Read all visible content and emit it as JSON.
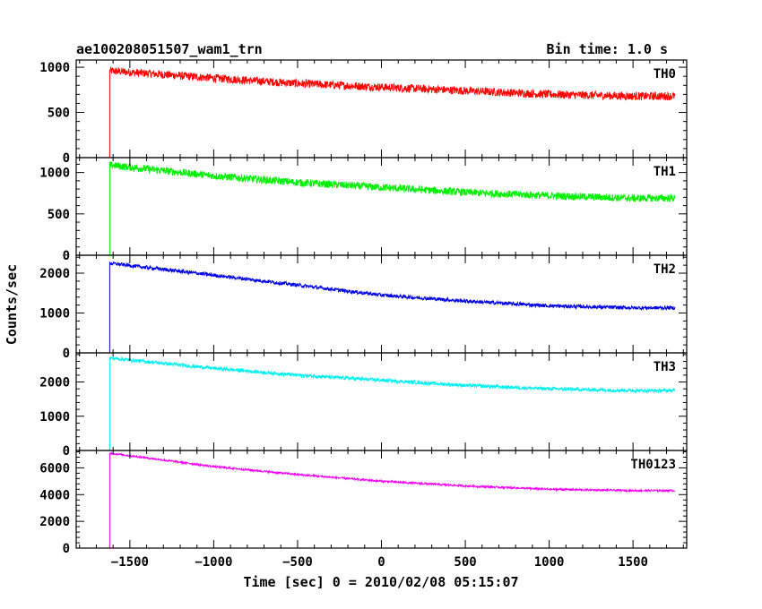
{
  "header": {
    "title": "ae100208051507_wam1_trn",
    "bin_time": "Bin time: 1.0 s"
  },
  "chart_data": {
    "type": "line",
    "xlabel": "Time [sec] 0 = 2010/02/08 05:15:07",
    "ylabel": "Counts/sec",
    "xlim": [
      -1820,
      1820
    ],
    "xticks": [
      -1500,
      -1000,
      -500,
      0,
      500,
      1000,
      1500
    ],
    "xtick_labels": [
      "−1500",
      "−1000",
      "−500",
      "0",
      "500",
      "1000",
      "1500"
    ],
    "grid": false,
    "data_start": -1620,
    "data_end": 1750,
    "zero_start": -1750,
    "series": [
      {
        "name": "TH0",
        "color": "#ff0000",
        "ylim": [
          0,
          1080
        ],
        "yticks": [
          0,
          500,
          1000
        ],
        "ytick_labels": [
          "0",
          "500",
          "1000"
        ],
        "trend_x": [
          -1620,
          -1000,
          -500,
          0,
          500,
          1000,
          1500,
          1750
        ],
        "trend_y": [
          960,
          880,
          820,
          780,
          740,
          700,
          680,
          680
        ],
        "noise": 45
      },
      {
        "name": "TH1",
        "color": "#00ee00",
        "ylim": [
          0,
          1180
        ],
        "yticks": [
          0,
          500,
          1000
        ],
        "ytick_labels": [
          "0",
          "500",
          "1000"
        ],
        "trend_x": [
          -1620,
          -1000,
          -500,
          0,
          500,
          1000,
          1500,
          1750
        ],
        "trend_y": [
          1090,
          960,
          880,
          820,
          760,
          720,
          690,
          690
        ],
        "noise": 45
      },
      {
        "name": "TH2",
        "color": "#0000dd",
        "ylim": [
          0,
          2450
        ],
        "yticks": [
          0,
          1000,
          2000
        ],
        "ytick_labels": [
          "0",
          "1000",
          "2000"
        ],
        "trend_x": [
          -1620,
          -1000,
          -500,
          0,
          500,
          1000,
          1500,
          1750
        ],
        "trend_y": [
          2250,
          1950,
          1700,
          1450,
          1300,
          1180,
          1130,
          1130
        ],
        "noise": 45
      },
      {
        "name": "TH3",
        "color": "#00eeee",
        "ylim": [
          0,
          2850
        ],
        "yticks": [
          0,
          1000,
          2000
        ],
        "ytick_labels": [
          "0",
          "1000",
          "2000"
        ],
        "trend_x": [
          -1620,
          -1000,
          -500,
          0,
          500,
          1000,
          1500,
          1750
        ],
        "trend_y": [
          2700,
          2400,
          2200,
          2050,
          1900,
          1800,
          1750,
          1750
        ],
        "noise": 50
      },
      {
        "name": "TH0123",
        "color": "#ee00ee",
        "ylim": [
          0,
          7300
        ],
        "yticks": [
          0,
          2000,
          4000,
          6000
        ],
        "ytick_labels": [
          "0",
          "2000",
          "4000",
          "6000"
        ],
        "trend_x": [
          -1620,
          -1000,
          -500,
          0,
          500,
          1000,
          1500,
          1750
        ],
        "trend_y": [
          7100,
          6100,
          5500,
          5000,
          4650,
          4400,
          4300,
          4300
        ],
        "noise": 70
      }
    ]
  }
}
